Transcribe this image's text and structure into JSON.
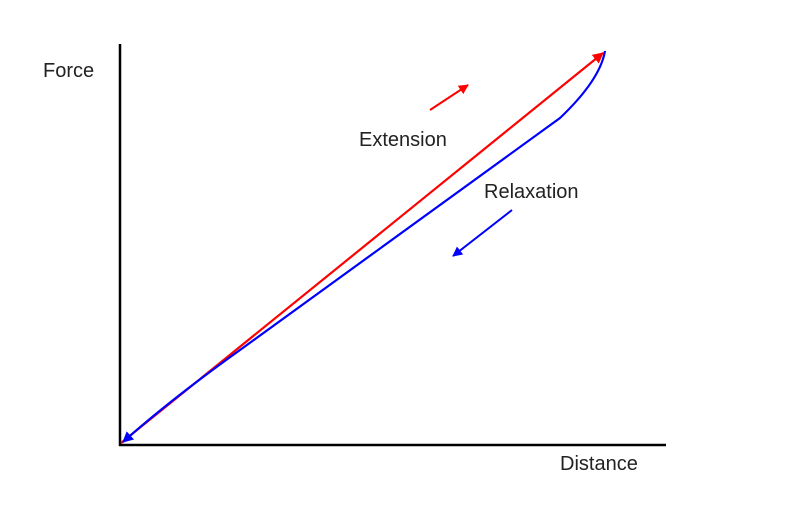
{
  "diagram": {
    "axes": {
      "y_label": "Force",
      "x_label": "Distance",
      "color": "#000000"
    },
    "curves": [
      {
        "name": "Extension",
        "label": "Extension",
        "color": "#ff0000",
        "direction": "up-right"
      },
      {
        "name": "Relaxation",
        "label": "Relaxation",
        "color": "#0000ff",
        "direction": "down-left"
      }
    ]
  }
}
